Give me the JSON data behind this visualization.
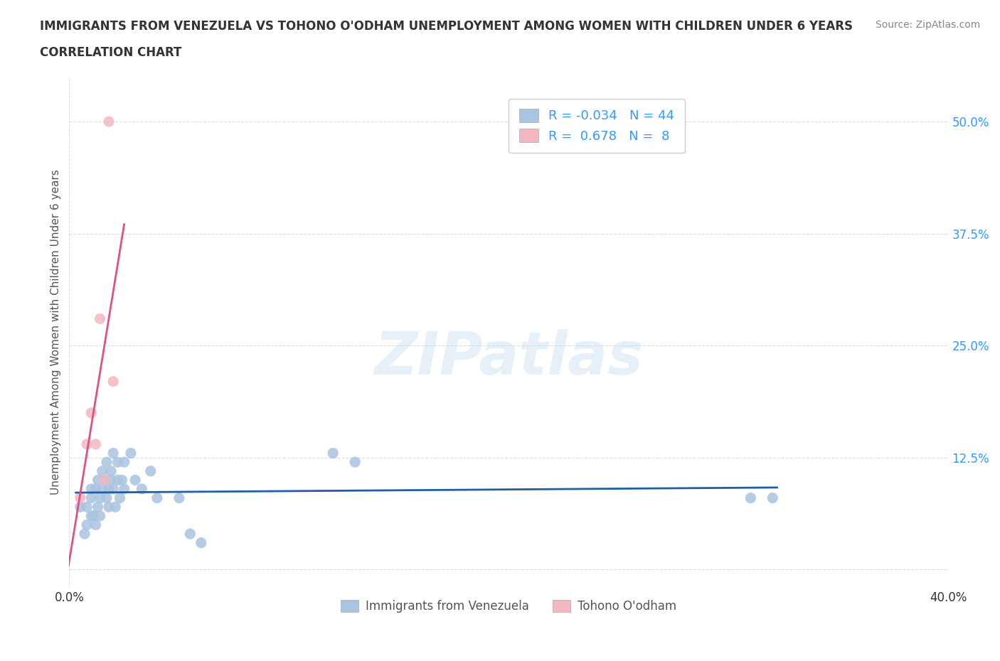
{
  "title_line1": "IMMIGRANTS FROM VENEZUELA VS TOHONO O'ODHAM UNEMPLOYMENT AMONG WOMEN WITH CHILDREN UNDER 6 YEARS",
  "title_line2": "CORRELATION CHART",
  "source_text": "Source: ZipAtlas.com",
  "ylabel": "Unemployment Among Women with Children Under 6 years",
  "xlim": [
    0.0,
    0.4
  ],
  "ylim": [
    -0.02,
    0.55
  ],
  "ytick_labels": [
    "50.0%",
    "37.5%",
    "25.0%",
    "12.5%",
    ""
  ],
  "ytick_vals": [
    0.5,
    0.375,
    0.25,
    0.125,
    0.0
  ],
  "blue_r": "-0.034",
  "blue_n": "44",
  "pink_r": "0.678",
  "pink_n": "8",
  "blue_color": "#a8c4e0",
  "pink_color": "#f4b8c1",
  "blue_line_color": "#1f5fa6",
  "pink_line_color": "#e05080",
  "legend_label_blue": "Immigrants from Venezuela",
  "legend_label_pink": "Tohono O'odham",
  "blue_scatter_x": [
    0.005,
    0.007,
    0.008,
    0.008,
    0.01,
    0.01,
    0.01,
    0.011,
    0.012,
    0.012,
    0.013,
    0.013,
    0.014,
    0.014,
    0.015,
    0.015,
    0.016,
    0.017,
    0.017,
    0.018,
    0.018,
    0.019,
    0.019,
    0.02,
    0.02,
    0.021,
    0.022,
    0.022,
    0.023,
    0.024,
    0.025,
    0.025,
    0.028,
    0.03,
    0.033,
    0.037,
    0.04,
    0.05,
    0.055,
    0.06,
    0.12,
    0.13,
    0.31,
    0.32
  ],
  "blue_scatter_y": [
    0.07,
    0.04,
    0.05,
    0.07,
    0.06,
    0.08,
    0.09,
    0.06,
    0.05,
    0.09,
    0.07,
    0.1,
    0.08,
    0.06,
    0.09,
    0.11,
    0.1,
    0.08,
    0.12,
    0.09,
    0.07,
    0.1,
    0.11,
    0.09,
    0.13,
    0.07,
    0.1,
    0.12,
    0.08,
    0.1,
    0.12,
    0.09,
    0.13,
    0.1,
    0.09,
    0.11,
    0.08,
    0.08,
    0.04,
    0.03,
    0.13,
    0.12,
    0.08,
    0.08
  ],
  "pink_scatter_x": [
    0.005,
    0.008,
    0.01,
    0.012,
    0.014,
    0.016,
    0.018,
    0.02
  ],
  "pink_scatter_y": [
    0.08,
    0.14,
    0.175,
    0.14,
    0.28,
    0.1,
    0.5,
    0.21
  ],
  "background_color": "#ffffff",
  "grid_color": "#dddddd"
}
